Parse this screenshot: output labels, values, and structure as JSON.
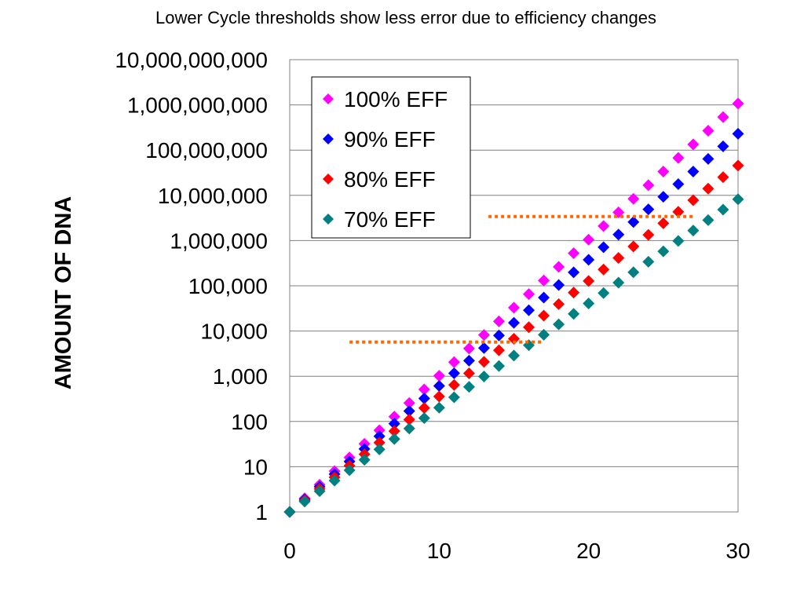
{
  "chart_data": {
    "type": "scatter",
    "title": "Lower Cycle thresholds show less error due to efficiency changes",
    "xlabel": "",
    "ylabel": "AMOUNT OF DNA",
    "xlim": [
      0,
      30
    ],
    "ylim": [
      1,
      10000000000
    ],
    "y_scale": "log",
    "x_ticks": [
      "0",
      "10",
      "20",
      "30"
    ],
    "y_ticks": [
      "1",
      "10",
      "100",
      "1,000",
      "10,000",
      "100,000",
      "1,000,000",
      "10,000,000",
      "100,000,000",
      "1,000,000,000",
      "10,000,000,000"
    ],
    "grid": "horizontal",
    "legend_position": "top-left",
    "marker": "diamond",
    "x": [
      0,
      1,
      2,
      3,
      4,
      5,
      6,
      7,
      8,
      9,
      10,
      11,
      12,
      13,
      14,
      15,
      16,
      17,
      18,
      19,
      20,
      21,
      22,
      23,
      24,
      25,
      26,
      27,
      28,
      29,
      30
    ],
    "series": [
      {
        "name": "100% EFF",
        "color": "#ff00ff",
        "growth_factor": 2.0
      },
      {
        "name": "90% EFF",
        "color": "#0000ff",
        "growth_factor": 1.9
      },
      {
        "name": "80% EFF",
        "color": "#ff0000",
        "growth_factor": 1.8
      },
      {
        "name": "70% EFF",
        "color": "#008080",
        "growth_factor": 1.7
      }
    ],
    "threshold_lines": [
      {
        "y": 5700,
        "x_start": 4,
        "x_end": 17,
        "color": "#ff6600",
        "style": "dotted"
      },
      {
        "y": 3400000,
        "x_start": 13.3,
        "x_end": 27,
        "color": "#ff6600",
        "style": "dotted"
      }
    ]
  }
}
